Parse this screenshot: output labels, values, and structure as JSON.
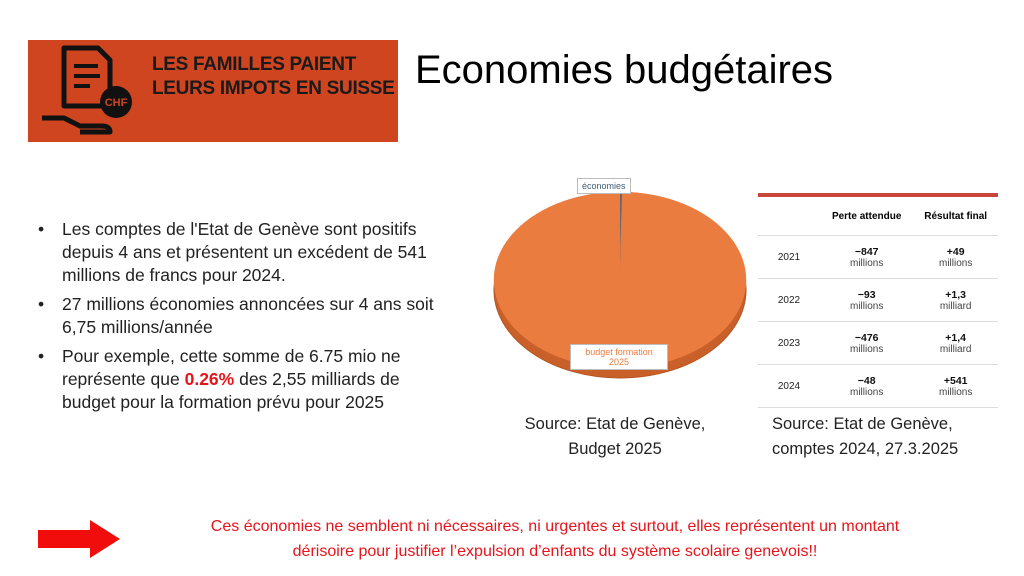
{
  "logo": {
    "lines": [
      "LES FAMILLES PAIENT",
      "LEURS IMPOTS EN SUISSE"
    ],
    "badge": "CHF"
  },
  "title": "Economies budgétaires",
  "bullets": [
    [
      "Les comptes de l'Etat de Genève sont positifs depuis 4 ans et présentent un excédent de 541 millions de francs pour 2024."
    ],
    [
      " 27 millions économies annoncées sur 4 ans soit 6,75 millions/année"
    ],
    [
      "Pour exemple, cette somme de 6.75 mio ne représente que ",
      "0.26%",
      " des 2,55 milliards de budget pour la formation prévu pour 2025"
    ]
  ],
  "chart_data": {
    "type": "pie",
    "categories": [
      "économies",
      "budget formation 2025"
    ],
    "values": [
      0.26,
      99.74
    ],
    "colors": [
      "#3f5f78",
      "#ea7c40"
    ]
  },
  "chart_source": [
    "Source: Etat de Genève,",
    "Budget 2025"
  ],
  "table": {
    "header": [
      "Perte attendue",
      "Résultat final"
    ],
    "rows": [
      [
        "2021",
        "−847",
        "millions",
        "+49",
        "millions"
      ],
      [
        "2022",
        "−93",
        "millions",
        "+1,3",
        "milliard"
      ],
      [
        "2023",
        "−476",
        "millions",
        "+1,4",
        "milliard"
      ],
      [
        "2024",
        "−48",
        "millions",
        "+541",
        "millions"
      ]
    ]
  },
  "table_source": [
    "Source: Etat de Genève,",
    "comptes 2024, 27.3.2025"
  ],
  "conclusion": [
    "Ces économies ne semblent ni nécessaires, ni urgentes et surtout, elles représentent un montant",
    "dérisoire pour  justifier l’expulsion d’enfants du système scolaire genevois!!"
  ]
}
